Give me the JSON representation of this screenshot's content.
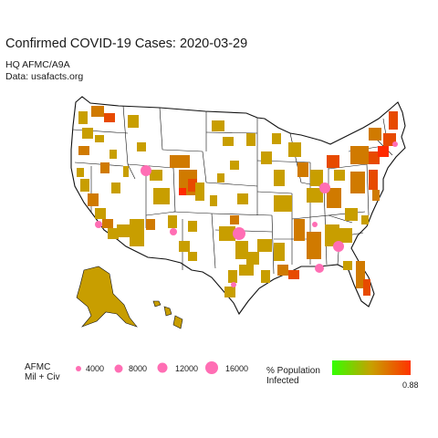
{
  "title": "Confirmed COVID-19 Cases: 2020-03-29",
  "subtitle_org": "HQ AFMC/A9A",
  "subtitle_source": "Data: usafacts.org",
  "legend_size": {
    "title_line1": "AFMC",
    "title_line2": "Mil + Civ",
    "entries": [
      {
        "value": 4000,
        "label": "4000"
      },
      {
        "value": 8000,
        "label": "8000"
      },
      {
        "value": 12000,
        "label": "12000"
      },
      {
        "value": 16000,
        "label": "16000"
      }
    ]
  },
  "legend_color": {
    "title_line1": "% Population",
    "title_line2": "Infected",
    "max_label": "0.88",
    "colors": [
      "#33ff00",
      "#c8a000",
      "#ff3300"
    ]
  },
  "colors": {
    "base_map": "#ffffff",
    "low": "#c89e00",
    "mid": "#d07a00",
    "high": "#e74a00",
    "very_high": "#ff2a00",
    "afmc_marker": "#ff6eb4"
  }
}
